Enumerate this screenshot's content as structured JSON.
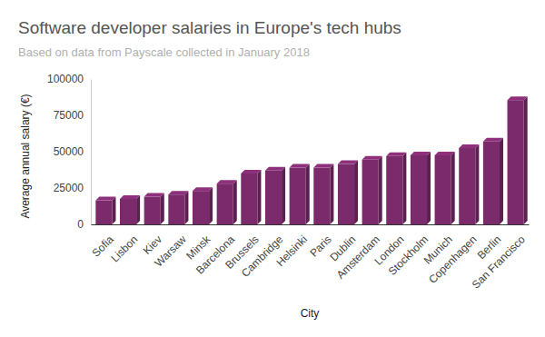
{
  "chart_data": {
    "type": "bar",
    "title": "Software developer salaries in Europe's tech hubs",
    "subtitle": "Based on data from Payscale collected in January 2018",
    "x_label": "City",
    "y_label": "Average annual salary (€)",
    "categories": [
      "Sofia",
      "Lisbon",
      "Kiev",
      "Warsaw",
      "Minsk",
      "Barcelona",
      "Brussels",
      "Cambridge",
      "Helsinki",
      "Paris",
      "Dublin",
      "Amsterdam",
      "London",
      "Stockholm",
      "Munich",
      "Copenhagen",
      "Berlin",
      "San Francisco"
    ],
    "values": [
      16500,
      17500,
      19000,
      20500,
      23000,
      28000,
      35000,
      37000,
      39000,
      39000,
      41500,
      44500,
      47000,
      47500,
      47500,
      52500,
      57000,
      85500
    ],
    "color": "#7b2a6b",
    "ylim": [
      0,
      100000
    ],
    "yticks": [
      0,
      25000,
      50000,
      75000,
      100000
    ],
    "grid": false
  }
}
